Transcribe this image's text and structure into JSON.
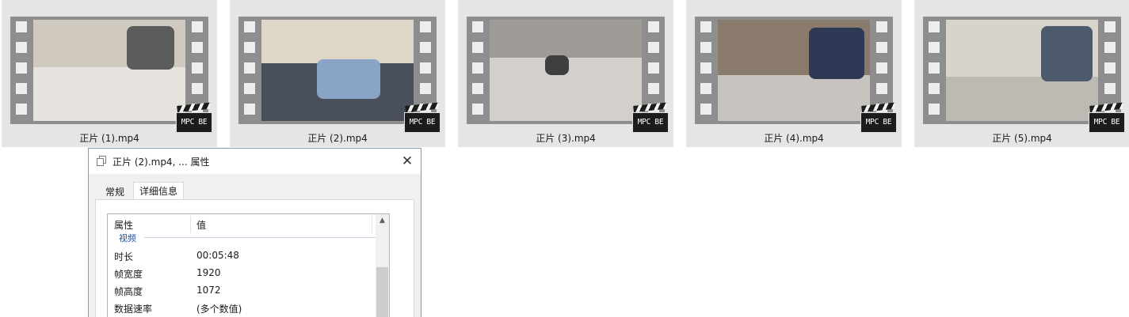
{
  "thumbnails": [
    {
      "caption": "正片 (1).mp4",
      "badge": "MPC BE",
      "scene": "shoe-closeup"
    },
    {
      "caption": "正片 (2).mp4",
      "badge": "MPC BE",
      "scene": "tilted-view"
    },
    {
      "caption": "正片 (3).mp4",
      "badge": "MPC BE",
      "scene": "floor-gap"
    },
    {
      "caption": "正片 (4).mp4",
      "badge": "MPC BE",
      "scene": "sneaker"
    },
    {
      "caption": "正片 (5).mp4",
      "badge": "MPC BE",
      "scene": "sneaker-2"
    }
  ],
  "dialog": {
    "title": "正片 (2).mp4, ... 属性",
    "close_glyph": "✕",
    "tabs": [
      {
        "label": "常规",
        "active": false
      },
      {
        "label": "详细信息",
        "active": true
      }
    ],
    "columns": {
      "property": "属性",
      "value": "值"
    },
    "group": "视频",
    "rows": [
      {
        "key": "时长",
        "value": "00:05:48"
      },
      {
        "key": "帧宽度",
        "value": "1920"
      },
      {
        "key": "帧高度",
        "value": "1072"
      },
      {
        "key": "数据速率",
        "value": "(多个数值)"
      }
    ],
    "scroll_up_glyph": "▲"
  },
  "colors": {
    "tile_bg": "#e5e5e5",
    "film_strip": "#8e8e8e",
    "dialog_border": "#7a9ac8",
    "group_text": "#1e4e9e"
  }
}
